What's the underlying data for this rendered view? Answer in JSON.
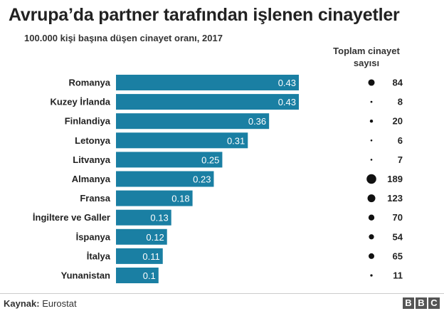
{
  "title": "Avrupa’da partner tarafından işlenen cinayetler",
  "subtitle": "100.000 kişi başına düşen cinayet oranı, 2017",
  "count_header": [
    "Toplam cinayet",
    "sayısı"
  ],
  "source_label": "Kaynak:",
  "source_value": "Eurostat",
  "logo_letters": [
    "B",
    "B",
    "C"
  ],
  "colors": {
    "bar": "#1a7fa3",
    "dot": "#111111",
    "text": "#222222"
  },
  "chart_data": {
    "type": "bar",
    "orientation": "horizontal",
    "title": "Avrupa’da partner tarafından işlenen cinayetler",
    "subtitle": "100.000 kişi başına düşen cinayet oranı, 2017",
    "categories": [
      "Romanya",
      "Kuzey İrlanda",
      "Finlandiya",
      "Letonya",
      "Litvanya",
      "Almanya",
      "Fransa",
      "İngiltere ve Galler",
      "İspanya",
      "İtalya",
      "Yunanistan"
    ],
    "series": [
      {
        "values": [
          0.43,
          0.43,
          0.36,
          0.31,
          0.25,
          0.23,
          0.18,
          0.13,
          0.12,
          0.11,
          0.1
        ],
        "labels": [
          "0.43",
          "0.43",
          "0.36",
          "0.31",
          "0.25",
          "0.23",
          "0.18",
          "0.13",
          "0.12",
          "0.11",
          "0.1"
        ]
      },
      {
        "name": "Toplam cinayet sayısı",
        "type": "bubble",
        "values": [
          84,
          8,
          20,
          6,
          7,
          189,
          123,
          70,
          54,
          65,
          11
        ]
      }
    ],
    "xlim": [
      0,
      0.43
    ],
    "grid": false,
    "legend": "none"
  }
}
